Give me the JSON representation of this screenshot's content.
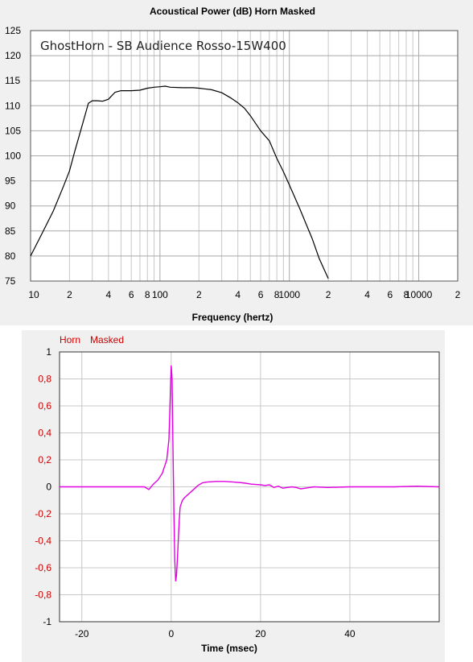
{
  "chart_data": [
    {
      "type": "line",
      "title": "Acoustical Power (dB)   Horn   Masked",
      "annotation": "GhostHorn - SB Audience Rosso-15W400",
      "xlabel": "Frequency (hertz)",
      "ylabel": "",
      "xscale": "log",
      "xlim": [
        10,
        20000
      ],
      "ylim": [
        75,
        125
      ],
      "yticks": [
        "125",
        "120",
        "115",
        "110",
        "105",
        "100",
        "95",
        "90",
        "85",
        "80",
        "75"
      ],
      "xticks": [
        {
          "v": 10,
          "label": "10"
        },
        {
          "v": 20,
          "label": "2"
        },
        {
          "v": 40,
          "label": "4"
        },
        {
          "v": 60,
          "label": "6"
        },
        {
          "v": 80,
          "label": "8"
        },
        {
          "v": 100,
          "label": "100"
        },
        {
          "v": 200,
          "label": "2"
        },
        {
          "v": 400,
          "label": "4"
        },
        {
          "v": 600,
          "label": "6"
        },
        {
          "v": 800,
          "label": "8"
        },
        {
          "v": 1000,
          "label": "1000"
        },
        {
          "v": 2000,
          "label": "2"
        },
        {
          "v": 4000,
          "label": "4"
        },
        {
          "v": 6000,
          "label": "6"
        },
        {
          "v": 8000,
          "label": "8"
        },
        {
          "v": 10000,
          "label": "10000"
        },
        {
          "v": 20000,
          "label": "2"
        }
      ],
      "grid": true,
      "line_color": "#000000",
      "series": [
        {
          "x": [
            10,
            12,
            15,
            18,
            20,
            22,
            25,
            28,
            30,
            33,
            36,
            40,
            45,
            50,
            60,
            70,
            80,
            90,
            100,
            110,
            120,
            150,
            180,
            200,
            250,
            300,
            350,
            400,
            450,
            500,
            600,
            700,
            800,
            900,
            1000,
            1200,
            1500,
            1700,
            2000
          ],
          "y": [
            80,
            84,
            89,
            94,
            97,
            101,
            106,
            110.5,
            111,
            111,
            110.9,
            111.3,
            112.7,
            113,
            113,
            113.1,
            113.5,
            113.7,
            113.8,
            113.9,
            113.7,
            113.6,
            113.6,
            113.5,
            113.2,
            112.6,
            111.6,
            110.6,
            109.5,
            108,
            105,
            103,
            99.5,
            96.8,
            94.2,
            89.5,
            83.5,
            79.5,
            75.5
          ]
        }
      ]
    },
    {
      "type": "line",
      "title": "",
      "legend": [
        "Horn",
        "Masked"
      ],
      "legend_color": "#cc0000",
      "xlabel": "Time (msec)",
      "ylabel": "",
      "xlim": [
        -25,
        60
      ],
      "ylim": [
        -1,
        1
      ],
      "xticks": [
        "-20",
        "0",
        "20",
        "40"
      ],
      "yticks": [
        "1",
        "0,8",
        "0,6",
        "0,4",
        "0,2",
        "0",
        "-0,2",
        "-0,4",
        "-0,6",
        "-0,8",
        "-1"
      ],
      "grid": true,
      "line_color": "#e000e0",
      "series": [
        {
          "x": [
            -25,
            -10,
            -6,
            -5,
            -4,
            -3,
            -2,
            -1,
            -0.5,
            0,
            0.2,
            0.4,
            0.6,
            0.8,
            1,
            1.2,
            1.5,
            1.8,
            2,
            2.5,
            3,
            4,
            5,
            6,
            7,
            8,
            10,
            12,
            14,
            16,
            18,
            20,
            21,
            22,
            23,
            24,
            25,
            26,
            27,
            28,
            29,
            30,
            32,
            35,
            40,
            45,
            50,
            55,
            60
          ],
          "y": [
            0,
            0,
            0,
            -0.02,
            0.02,
            0.05,
            0.1,
            0.2,
            0.35,
            0.9,
            0.8,
            0.3,
            -0.2,
            -0.55,
            -0.7,
            -0.65,
            -0.45,
            -0.25,
            -0.15,
            -0.1,
            -0.08,
            -0.05,
            -0.02,
            0.01,
            0.03,
            0.035,
            0.04,
            0.04,
            0.035,
            0.03,
            0.02,
            0.015,
            0.01,
            0.015,
            -0.005,
            0.005,
            -0.01,
            -0.005,
            0.0,
            -0.005,
            -0.015,
            -0.01,
            0.0,
            -0.005,
            0.0,
            0.0,
            0.0,
            0.005,
            0.0
          ]
        }
      ]
    }
  ]
}
